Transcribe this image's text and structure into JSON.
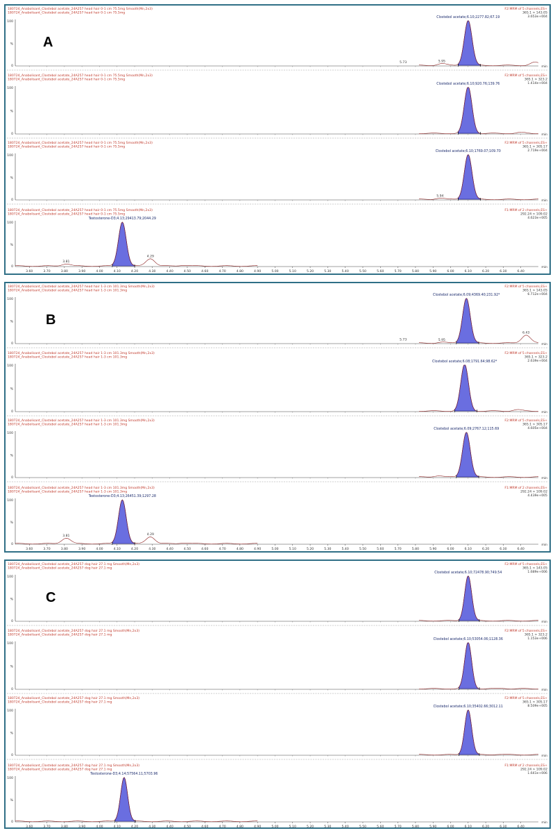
{
  "x_axis": {
    "unit": "min",
    "ticks": [
      "3.60",
      "3.70",
      "3.80",
      "3.90",
      "4.00",
      "4.10",
      "4.20",
      "4.30",
      "4.40",
      "4.50",
      "4.60",
      "4.70",
      "4.80",
      "4.90",
      "5.00",
      "5.10",
      "5.20",
      "5.30",
      "5.40",
      "5.50",
      "5.60",
      "5.70",
      "5.80",
      "5.90",
      "6.00",
      "6.10",
      "6.20",
      "6.30",
      "6.40"
    ],
    "range": [
      3.52,
      6.5
    ]
  },
  "y_axis": {
    "ticks": [
      "100",
      "%",
      "0"
    ]
  },
  "colors": {
    "trace": "#8b1f1f",
    "peak_fill": "#6a6ee0",
    "peak_edge": "#2a2a90",
    "header": "#c0392b",
    "border": "#2f6f86",
    "grid": "#9a9a9a"
  },
  "panels": [
    {
      "label": "A",
      "chart_data": [
        {
          "type": "line",
          "header_left": [
            "180724_Anabolisant_Clostebol acetate_24A257 head hair 0-1 cm 75.5mg Smooth(Mn,2x3)",
            "180724_Anabolisant_Clostebol acetate_24A257 head hair 0-1 cm 75.5mg"
          ],
          "header_right": [
            "F2:MRM of 5 channels,ES+",
            "365.1 > 143.05",
            "3.653e+004"
          ],
          "annotation": "Clostebol acetate;6.10;2277.82;67.19",
          "series": [
            {
              "x_start": 5.82,
              "x_end": 6.5,
              "peak_x": 6.1,
              "peak_y": 100,
              "peak_w": 0.022,
              "minor": [
                {
                  "x": 5.73,
                  "y": 2
                },
                {
                  "x": 5.95,
                  "y": 4
                },
                {
                  "x": 6.48,
                  "y": 7
                }
              ]
            }
          ],
          "peak_labels": [
            {
              "x": 5.73,
              "text": "5.73"
            },
            {
              "x": 5.95,
              "text": "5.95"
            }
          ]
        },
        {
          "type": "line",
          "header_left": [
            "180724_Anabolisant_Clostebol acetate_24A257 head hair 0-1 cm 75.5mg Smooth(Mn,2x3)",
            "180724_Anabolisant_Clostebol acetate_24A257 head hair 0-1 cm 75.5mg"
          ],
          "header_right": [
            "F2:MRM of 5 channels,ES+",
            "365.1 > 323.2",
            "1.414e+004"
          ],
          "annotation": "Clostebol acetate;6.10;920.76;139.76",
          "series": [
            {
              "x_start": 5.82,
              "x_end": 6.5,
              "peak_x": 6.1,
              "peak_y": 100,
              "peak_w": 0.022,
              "minor": [
                {
                  "x": 6.4,
                  "y": 2
                }
              ]
            }
          ],
          "peak_labels": []
        },
        {
          "type": "line",
          "header_left": [
            "180724_Anabolisant_Clostebol acetate_24A257 head hair 0-1 cm 75.5mg Smooth(Mn,2x3)",
            "180724_Anabolisant_Clostebol acetate_24A257 head hair 0-1 cm 75.5mg"
          ],
          "header_right": [
            "F2:MRM of 5 channels,ES+",
            "365.1 > 305.17",
            "2.719e+004"
          ],
          "annotation": "Clostebol acetate;6.10;1769.07;109.70",
          "series": [
            {
              "x_start": 5.82,
              "x_end": 6.5,
              "peak_x": 6.1,
              "peak_y": 100,
              "peak_w": 0.022,
              "minor": [
                {
                  "x": 5.94,
                  "y": 3
                }
              ]
            }
          ],
          "peak_labels": [
            {
              "x": 5.94,
              "text": "5.94"
            }
          ]
        },
        {
          "type": "line",
          "header_left": [
            "180724_Anabolisant_Clostebol acetate_24A257 head hair 0-1 cm 75.5mg Smooth(Mn,2x3)",
            "180724_Anabolisant_Clostebol acetate_24A257 head hair 0-1 cm 75.5mg"
          ],
          "header_right": [
            "F1:MRM of 2 channels,ES+",
            "292.24 > 109.02",
            "4.623e+005"
          ],
          "annotation": "Testosterone-D3;4.13;29413.79;2044.29",
          "series": [
            {
              "x_start": 3.52,
              "x_end": 4.9,
              "peak_x": 4.13,
              "peak_y": 100,
              "peak_w": 0.022,
              "minor": [
                {
                  "x": 3.81,
                  "y": 5
                },
                {
                  "x": 4.29,
                  "y": 17
                },
                {
                  "x": 4.48,
                  "y": 2
                }
              ]
            }
          ],
          "peak_labels": [
            {
              "x": 3.81,
              "text": "3.81"
            },
            {
              "x": 4.29,
              "text": "4.29"
            }
          ]
        }
      ]
    },
    {
      "label": "B",
      "chart_data": [
        {
          "type": "line",
          "header_left": [
            "180724_Anabolisant_Clostebol acetate_24A257 head hair 1-3 cm 101.3mg Smooth(Mn,2x3)",
            "180724_Anabolisant_Clostebol acetate_24A257 head hair 1-3 cm 101.3mg"
          ],
          "header_right": [
            "F2:MRM of 5 channels,ES+",
            "365.1 > 143.05",
            "6.712e+004"
          ],
          "annotation": "Clostebol acetate;6.09;4369.40;231.92*",
          "series": [
            {
              "x_start": 5.82,
              "x_end": 6.5,
              "peak_x": 6.09,
              "peak_y": 100,
              "peak_w": 0.022,
              "minor": [
                {
                  "x": 5.73,
                  "y": 3
                },
                {
                  "x": 5.95,
                  "y": 2
                },
                {
                  "x": 6.43,
                  "y": 18
                }
              ]
            }
          ],
          "peak_labels": [
            {
              "x": 5.73,
              "text": "5.73"
            },
            {
              "x": 5.95,
              "text": "5.95"
            },
            {
              "x": 6.43,
              "text": "6.43"
            }
          ]
        },
        {
          "type": "line",
          "header_left": [
            "180724_Anabolisant_Clostebol acetate_24A257 head hair 1-3 cm 101.3mg Smooth(Mn,2x3)",
            "180724_Anabolisant_Clostebol acetate_24A257 head hair 1-3 cm 101.3mg"
          ],
          "header_right": [
            "F2:MRM of 5 channels,ES+",
            "365.1 > 323.2",
            "2.639e+004"
          ],
          "annotation": "Clostebol acetate;6.08;1791.64;98.62*",
          "series": [
            {
              "x_start": 5.82,
              "x_end": 6.5,
              "peak_x": 6.08,
              "peak_y": 100,
              "peak_w": 0.022,
              "minor": [
                {
                  "x": 6.38,
                  "y": 3
                }
              ]
            }
          ],
          "peak_labels": []
        },
        {
          "type": "line",
          "header_left": [
            "180724_Anabolisant_Clostebol acetate_24A257 head hair 1-3 cm 101.3mg Smooth(Mn,2x3)",
            "180724_Anabolisant_Clostebol acetate_24A257 head hair 1-3 cm 101.3mg"
          ],
          "header_right": [
            "F2:MRM of 5 channels,ES+",
            "365.1 > 305.17",
            "4.605e+004"
          ],
          "annotation": "Clostebol acetate;6.09;2767.12;115.69",
          "series": [
            {
              "x_start": 5.82,
              "x_end": 6.5,
              "peak_x": 6.09,
              "peak_y": 100,
              "peak_w": 0.022,
              "minor": [
                {
                  "x": 5.93,
                  "y": 3
                }
              ]
            }
          ],
          "peak_labels": []
        },
        {
          "type": "line",
          "header_left": [
            "180724_Anabolisant_Clostebol acetate_24A257 head hair 1-3 cm 101.3mg Smooth(Mn,2x3)",
            "180724_Anabolisant_Clostebol acetate_24A257 head hair 1-3 cm 101.3mg"
          ],
          "header_right": [
            "F1:MRM of 2 channels,ES+",
            "292.24 > 109.02",
            "4.439e+005"
          ],
          "annotation": "Testosterone-D3;4.13;26451.39;1297.28",
          "series": [
            {
              "x_start": 3.52,
              "x_end": 4.9,
              "peak_x": 4.13,
              "peak_y": 100,
              "peak_w": 0.022,
              "minor": [
                {
                  "x": 3.81,
                  "y": 13
                },
                {
                  "x": 4.29,
                  "y": 16
                },
                {
                  "x": 4.48,
                  "y": 2
                }
              ]
            }
          ],
          "peak_labels": [
            {
              "x": 3.81,
              "text": "3.81"
            },
            {
              "x": 4.29,
              "text": "4.29"
            }
          ]
        }
      ]
    },
    {
      "label": "C",
      "chart_data": [
        {
          "type": "line",
          "header_left": [
            "180724_Anabolisant_Clostebol acetate_24A257 dog hair 27.1 mg Smooth(Mn,2x3)",
            "180724_Anabolisant_Clostebol acetate_24A257 dog hair 27.1 mg"
          ],
          "header_right": [
            "F2:MRM of 5 channels,ES+",
            "365.1 > 143.05",
            "1.689e+006"
          ],
          "annotation": "Clostebol acetate;6.10;72478.90;749.54",
          "series": [
            {
              "x_start": 5.82,
              "x_end": 6.5,
              "peak_x": 6.1,
              "peak_y": 100,
              "peak_w": 0.02,
              "minor": []
            }
          ],
          "peak_labels": []
        },
        {
          "type": "line",
          "header_left": [
            "180724_Anabolisant_Clostebol acetate_24A257 dog hair 27.1 mg Smooth(Mn,2x3)",
            "180724_Anabolisant_Clostebol acetate_24A257 dog hair 27.1 mg"
          ],
          "header_right": [
            "F2:MRM of 5 channels,ES+",
            "365.1 > 323.2",
            "1.153e+006"
          ],
          "annotation": "Clostebol acetate;6.10;53054.06;1128.36",
          "series": [
            {
              "x_start": 5.82,
              "x_end": 6.5,
              "peak_x": 6.1,
              "peak_y": 100,
              "peak_w": 0.02,
              "minor": [
                {
                  "x": 6.3,
                  "y": 1
                }
              ]
            }
          ],
          "peak_labels": []
        },
        {
          "type": "line",
          "header_left": [
            "180724_Anabolisant_Clostebol acetate_24A257 dog hair 27.1 mg Smooth(Mn,2x3)",
            "180724_Anabolisant_Clostebol acetate_24A257 dog hair 27.1 mg"
          ],
          "header_right": [
            "F2:MRM of 5 channels,ES+",
            "365.1 > 305.17",
            "8.509e+005"
          ],
          "annotation": "Clostebol acetate;6.10;35402.66;3012.11",
          "series": [
            {
              "x_start": 5.82,
              "x_end": 6.5,
              "peak_x": 6.1,
              "peak_y": 100,
              "peak_w": 0.02,
              "minor": [
                {
                  "x": 6.27,
                  "y": 1
                }
              ]
            }
          ],
          "peak_labels": []
        },
        {
          "type": "line",
          "header_left": [
            "180724_Anabolisant_Clostebol acetate_24A257 dog hair 27.1 mg Smooth(Mn,2x3)",
            "180724_Anabolisant_Clostebol acetate_24A257 dog hair 27.1 mg"
          ],
          "header_right": [
            "F1:MRM of 2 channels,ES+",
            "292.24 > 109.02",
            "1.641e+006"
          ],
          "annotation": "Testosterone-D3;4.14;57564.11;5703.96",
          "series": [
            {
              "x_start": 3.52,
              "x_end": 4.9,
              "peak_x": 4.14,
              "peak_y": 100,
              "peak_w": 0.02,
              "minor": []
            }
          ],
          "peak_labels": []
        }
      ]
    }
  ]
}
